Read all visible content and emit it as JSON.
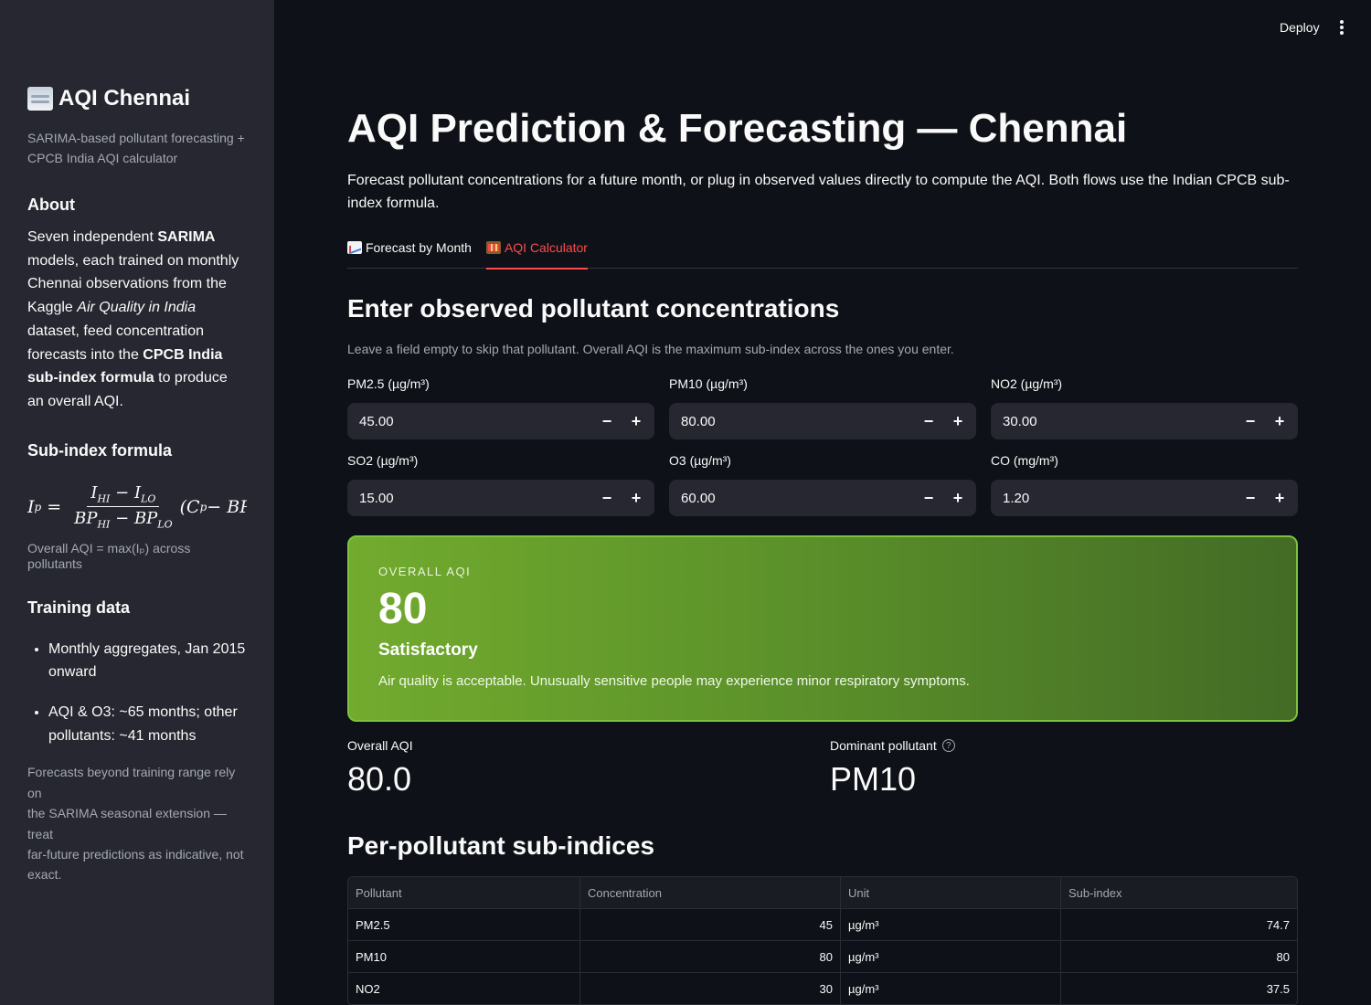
{
  "sidebar": {
    "title": "AQI Chennai",
    "title_icon": "fog-icon",
    "caption_line1": "SARIMA-based pollutant forecasting +",
    "caption_line2": "CPCB India AQI calculator",
    "about_heading": "About",
    "about": {
      "p1": "Seven independent ",
      "p2": "SARIMA",
      "p3": " models, each trained on monthly Chennai observations from the Kaggle ",
      "p4": "Air Quality in India",
      "p5": " dataset, feed concentration forecasts into the ",
      "p6": "CPCB India sub-index formula",
      "p7": " to produce an overall AQI."
    },
    "formula_heading": "Sub-index formula",
    "formula": {
      "lhs": "I",
      "lhs_sub": "p",
      "eq": "=",
      "num": "I",
      "num_sub1": "HI",
      "minus": " − ",
      "num_sub2": "LO",
      "den1": "BP",
      "den_sub1": "HI",
      "den2": "BP",
      "den_sub2": "LO",
      "tail": "(C",
      "tail_sub": "p",
      "tail_rest": " − BP"
    },
    "formula_note": "Overall AQI = max(Iₚ) across pollutants",
    "training_heading": "Training data",
    "training_items": [
      "Monthly aggregates, Jan 2015 onward",
      "AQI & O3: ~65 months; other pollutants: ~41 months"
    ],
    "note_line1": "Forecasts beyond training range rely on",
    "note_line2": "the SARIMA seasonal extension — treat",
    "note_line3": "far-future predictions as indicative, not",
    "note_line4": "exact."
  },
  "header": {
    "deploy_label": "Deploy",
    "menu_icon": "more-vertical-icon"
  },
  "main": {
    "title": "AQI Prediction & Forecasting — Chennai",
    "intro": "Forecast pollutant concentrations for a future month, or plug in observed values directly to compute the AQI. Both flows use the Indian CPCB sub-index formula.",
    "tabs": [
      {
        "label": "Forecast by Month",
        "icon": "chart-increasing-icon",
        "active": false
      },
      {
        "label": "AQI Calculator",
        "icon": "abacus-icon",
        "active": true
      }
    ],
    "section_heading": "Enter observed pollutant concentrations",
    "hint": "Leave a field empty to skip that pollutant. Overall AQI is the maximum sub-index across the ones you enter.",
    "inputs": [
      {
        "label": "PM2.5 (µg/m³)",
        "value": "45.00"
      },
      {
        "label": "PM10 (µg/m³)",
        "value": "80.00"
      },
      {
        "label": "NO2 (µg/m³)",
        "value": "30.00"
      },
      {
        "label": "SO2 (µg/m³)",
        "value": "15.00"
      },
      {
        "label": "O3 (µg/m³)",
        "value": "60.00"
      },
      {
        "label": "CO (mg/m³)",
        "value": "1.20"
      }
    ],
    "stepper_minus": "−",
    "stepper_plus": "+",
    "card": {
      "kicker": "Overall AQI",
      "aqi": "80",
      "category": "Satisfactory",
      "description": "Air quality is acceptable. Unusually sensitive people may experience minor respiratory symptoms.",
      "accent": "#7bc23e"
    },
    "metrics": {
      "overall_label": "Overall AQI",
      "overall_value": "80.0",
      "dominant_label": "Dominant pollutant",
      "dominant_value": "PM10",
      "help_glyph": "?"
    },
    "table_heading": "Per-pollutant sub-indices",
    "table": {
      "columns": [
        "Pollutant",
        "Concentration",
        "Unit",
        "Sub-index"
      ],
      "rows": [
        [
          "PM2.5",
          "45",
          "µg/m³",
          "74.7"
        ],
        [
          "PM10",
          "80",
          "µg/m³",
          "80"
        ],
        [
          "NO2",
          "30",
          "µg/m³",
          "37.5"
        ]
      ]
    }
  }
}
